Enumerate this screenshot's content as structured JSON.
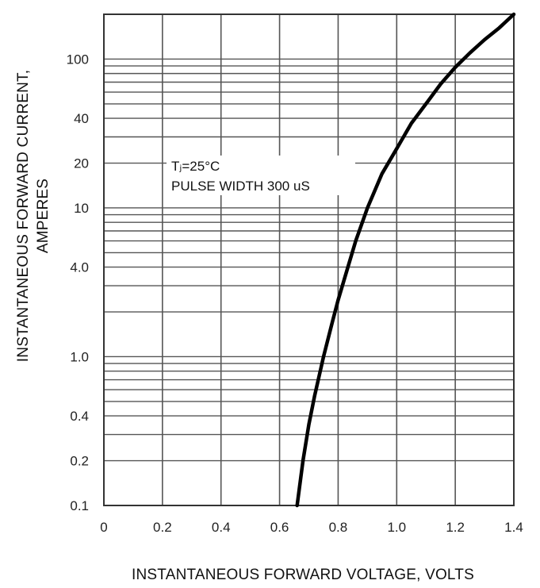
{
  "chart_data": {
    "type": "line",
    "title": "",
    "xlabel": "INSTANTANEOUS FORWARD VOLTAGE, VOLTS",
    "ylabel_line1": "INSTANTANEOUS FORWARD CURRENT,",
    "ylabel_line2": "AMPERES",
    "xscale": "linear",
    "yscale": "log",
    "xlim": [
      0,
      1.4
    ],
    "ylim": [
      0.1,
      200
    ],
    "x_ticks": [
      {
        "v": 0,
        "label": "0"
      },
      {
        "v": 0.2,
        "label": "0.2"
      },
      {
        "v": 0.4,
        "label": "0.4"
      },
      {
        "v": 0.6,
        "label": "0.6"
      },
      {
        "v": 0.8,
        "label": "0.8"
      },
      {
        "v": 1.0,
        "label": "1.0"
      },
      {
        "v": 1.2,
        "label": "1.2"
      },
      {
        "v": 1.4,
        "label": "1.4"
      }
    ],
    "y_ticks": [
      {
        "v": 0.1,
        "label": "0.1"
      },
      {
        "v": 0.2,
        "label": "0.2"
      },
      {
        "v": 0.4,
        "label": "0.4"
      },
      {
        "v": 1.0,
        "label": "1.0"
      },
      {
        "v": 4.0,
        "label": "4.0"
      },
      {
        "v": 10,
        "label": "10"
      },
      {
        "v": 20,
        "label": "20"
      },
      {
        "v": 40,
        "label": "40"
      },
      {
        "v": 100,
        "label": "100"
      }
    ],
    "grid": true,
    "annotation_line1": "Tⱼ=25°C",
    "annotation_line2": "PULSE WIDTH 300 uS",
    "series": [
      {
        "color": "#000000",
        "x": [
          0.66,
          0.68,
          0.7,
          0.72,
          0.75,
          0.78,
          0.8,
          0.83,
          0.86,
          0.9,
          0.95,
          1.0,
          1.05,
          1.1,
          1.15,
          1.2,
          1.25,
          1.3,
          1.35,
          1.4
        ],
        "y": [
          0.1,
          0.2,
          0.35,
          0.55,
          1.0,
          1.7,
          2.4,
          3.8,
          6.0,
          10,
          17,
          25,
          37,
          50,
          68,
          88,
          110,
          135,
          162,
          200
        ]
      }
    ]
  }
}
